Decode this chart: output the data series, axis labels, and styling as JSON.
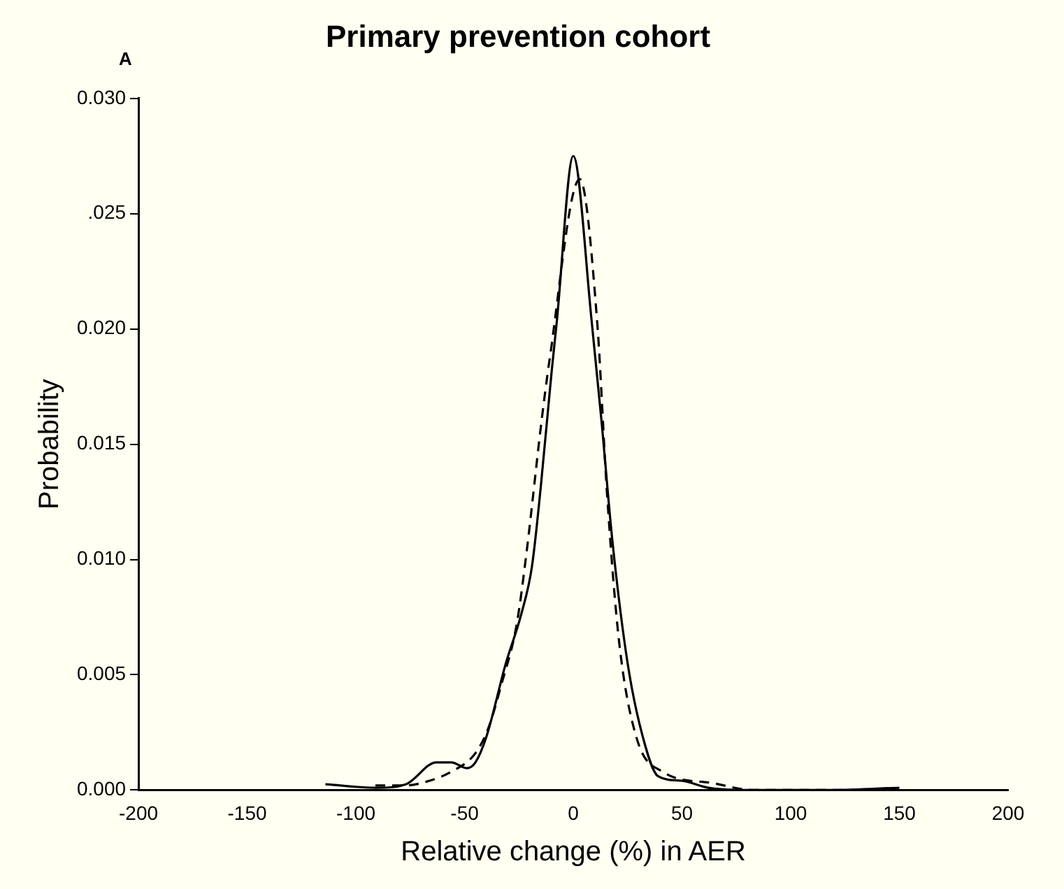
{
  "chart_data": {
    "type": "line",
    "title": "Primary prevention cohort",
    "xlabel": "Relative change (%) in AER",
    "ylabel": "Probability",
    "annotations": [
      "A"
    ],
    "xlim": [
      -200,
      200
    ],
    "xticks": [
      -200,
      -150,
      -100,
      -50,
      0,
      50,
      100,
      150,
      200
    ],
    "ylim": [
      0,
      0.03
    ],
    "yticks": [
      {
        "value": 0,
        "label": "0.000"
      },
      {
        "value": 0.005,
        "label": "0.005"
      },
      {
        "value": 0.01,
        "label": "0.010"
      },
      {
        "value": 0.015,
        "label": "0.015"
      },
      {
        "value": 0.02,
        "label": "0.020"
      },
      {
        "value": 0.025,
        "label": ".025"
      },
      {
        "value": 0.03,
        "label": "0.030"
      }
    ],
    "grid": false,
    "legend": false,
    "marker": "none",
    "series": [
      {
        "color": "#000000",
        "line_style": "solid",
        "x": [
          -114,
          -91,
          -77,
          -63,
          -56,
          -49,
          -45,
          -40,
          -31,
          -24,
          -19,
          -15,
          -10,
          -7.6,
          0,
          8.5,
          13,
          18,
          25,
          32,
          39,
          50,
          62,
          83,
          120,
          150
        ],
        "values": [
          0.00025,
          0.0001,
          0.00025,
          0.0012,
          0.0012,
          0.00095,
          0.0012,
          0.0023,
          0.0055,
          0.0076,
          0.0097,
          0.0131,
          0.0181,
          0.0203,
          0.0275,
          0.0203,
          0.016,
          0.0108,
          0.0055,
          0.0023,
          0.0006,
          0.0004,
          0.0001,
          0,
          0,
          0.0001
        ]
      },
      {
        "color": "#000000",
        "line_style": "dashed",
        "x": [
          -91,
          -77,
          -70,
          -56,
          -45,
          -39,
          -33,
          -26,
          -21.5,
          -14.6,
          -11,
          3,
          11,
          15.5,
          21,
          29,
          41,
          64,
          83,
          120,
          150
        ],
        "values": [
          0.0002,
          0.0002,
          0.0003,
          0.0008,
          0.0016,
          0.0027,
          0.0046,
          0.0072,
          0.0103,
          0.016,
          0.0186,
          0.0265,
          0.0203,
          0.0129,
          0.0065,
          0.0023,
          0.0008,
          0.0003,
          0,
          0,
          0
        ]
      }
    ]
  }
}
